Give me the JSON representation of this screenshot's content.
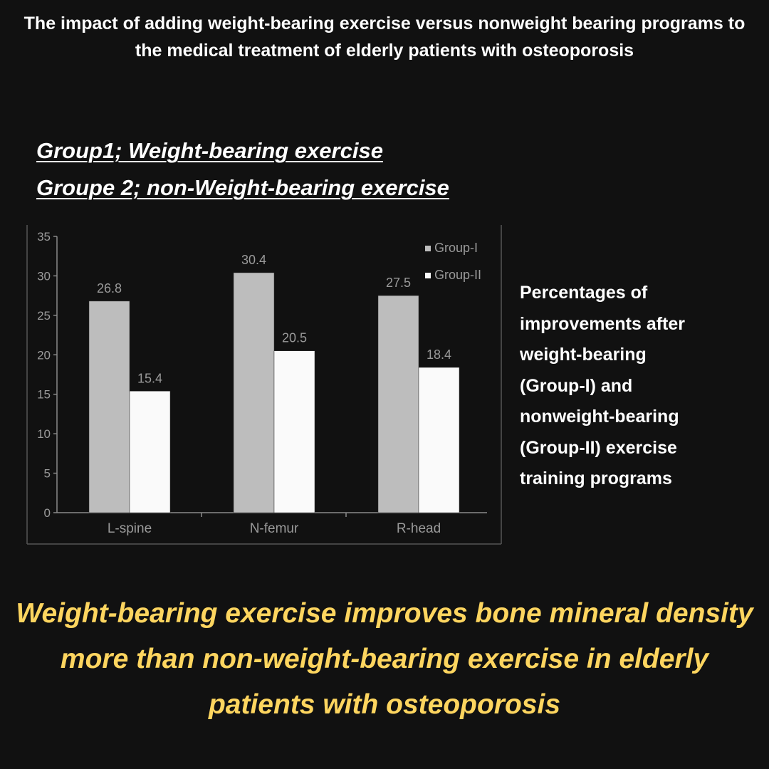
{
  "title": "The impact of adding weight-bearing exercise versus nonweight bearing programs to the medical treatment of elderly patients with osteoporosis",
  "groups": {
    "group1": "Group1; Weight-bearing exercise",
    "group2": "Groupe 2; non-Weight-bearing exercise"
  },
  "side_note": " Percentages of\nimprovements after\nweight-bearing\n(Group-I) and\nnonweight-bearing\n(Group-II) exercise\ntraining programs",
  "conclusion": "Weight-bearing exercise improves bone mineral density more than non-weight-bearing exercise in elderly patients with osteoporosis",
  "colors": {
    "background": "#111111",
    "group1_bar": "#bdbdbd",
    "group2_bar": "#fafafa",
    "chart_text": "#9a9a9a",
    "conclusion": "#fdd55f"
  },
  "chart_data": {
    "type": "bar",
    "categories": [
      "L-spine",
      "N-femur",
      "R-head"
    ],
    "series": [
      {
        "name": "Group-I",
        "values": [
          26.8,
          30.4,
          27.5
        ],
        "labels": [
          "26.8",
          "30.4",
          "27.5"
        ]
      },
      {
        "name": "Group-II",
        "values": [
          15.4,
          20.5,
          18.4
        ],
        "labels": [
          "15.4",
          "20.5",
          "18.4"
        ]
      }
    ],
    "yticks": [
      "0",
      "5",
      "10",
      "15",
      "20",
      "25",
      "30",
      "35"
    ],
    "ylim": [
      0,
      35
    ],
    "grid": false,
    "legend": "top-right"
  }
}
